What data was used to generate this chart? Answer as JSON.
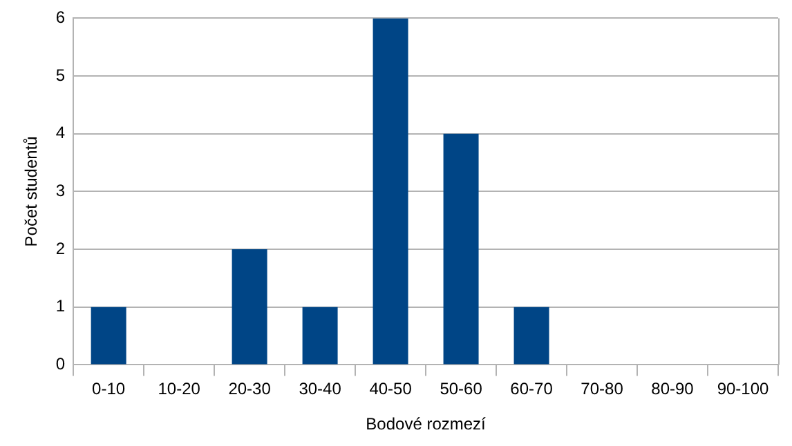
{
  "chart_data": {
    "type": "bar",
    "xlabel": "Bodové rozmezí",
    "ylabel": "Počet studentů",
    "categories": [
      "0-10",
      "10-20",
      "20-30",
      "30-40",
      "40-50",
      "50-60",
      "60-70",
      "70-80",
      "80-90",
      "90-100"
    ],
    "values": [
      1,
      0,
      2,
      1,
      6,
      4,
      1,
      0,
      0,
      0
    ],
    "color": "#004586",
    "ylim": [
      0,
      6
    ],
    "yticks": [
      0,
      1,
      2,
      3,
      4,
      5,
      6
    ],
    "grid": "y",
    "legend": false
  }
}
